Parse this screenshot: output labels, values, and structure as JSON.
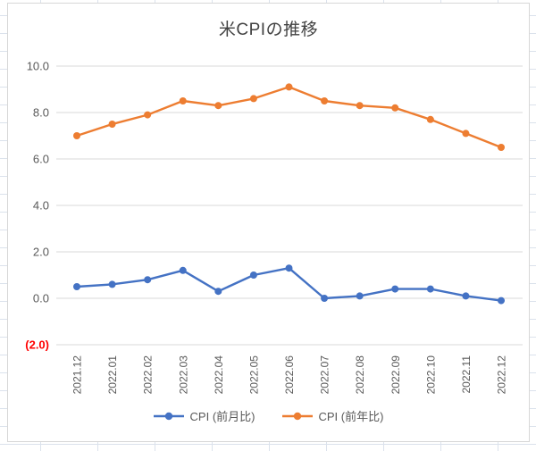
{
  "chart_data": {
    "type": "line",
    "title": "米CPIの推移",
    "categories": [
      "2021.12",
      "2022.01",
      "2022.02",
      "2022.03",
      "2022.04",
      "2022.05",
      "2022.06",
      "2022.07",
      "2022.08",
      "2022.09",
      "2022.10",
      "2022.11",
      "2022.12"
    ],
    "series": [
      {
        "id": "mom",
        "name": "CPI (前月比)",
        "color": "#4472C4",
        "values": [
          0.5,
          0.6,
          0.8,
          1.2,
          0.3,
          1.0,
          1.3,
          0.0,
          0.1,
          0.4,
          0.4,
          0.1,
          -0.1
        ]
      },
      {
        "id": "yoy",
        "name": "CPI (前年比)",
        "color": "#ED7D31",
        "values": [
          7.0,
          7.5,
          7.9,
          8.5,
          8.3,
          8.6,
          9.1,
          8.5,
          8.3,
          8.2,
          7.7,
          7.1,
          6.5
        ]
      }
    ],
    "ylim": [
      -2,
      10
    ],
    "yticks": [
      {
        "label": "10.0",
        "value": 10,
        "color": "#595959",
        "bold": false
      },
      {
        "label": "8.0",
        "value": 8,
        "color": "#595959",
        "bold": false
      },
      {
        "label": "6.0",
        "value": 6,
        "color": "#595959",
        "bold": false
      },
      {
        "label": "4.0",
        "value": 4,
        "color": "#595959",
        "bold": false
      },
      {
        "label": "2.0",
        "value": 2,
        "color": "#595959",
        "bold": false
      },
      {
        "label": "0.0",
        "value": 0,
        "color": "#595959",
        "bold": false
      },
      {
        "label": "(2.0)",
        "value": -2,
        "color": "#FF0000",
        "bold": true
      }
    ],
    "grid": true,
    "legend_position": "bottom",
    "axis_label_color": "#595959",
    "gridline_color": "#d9d9d9"
  }
}
